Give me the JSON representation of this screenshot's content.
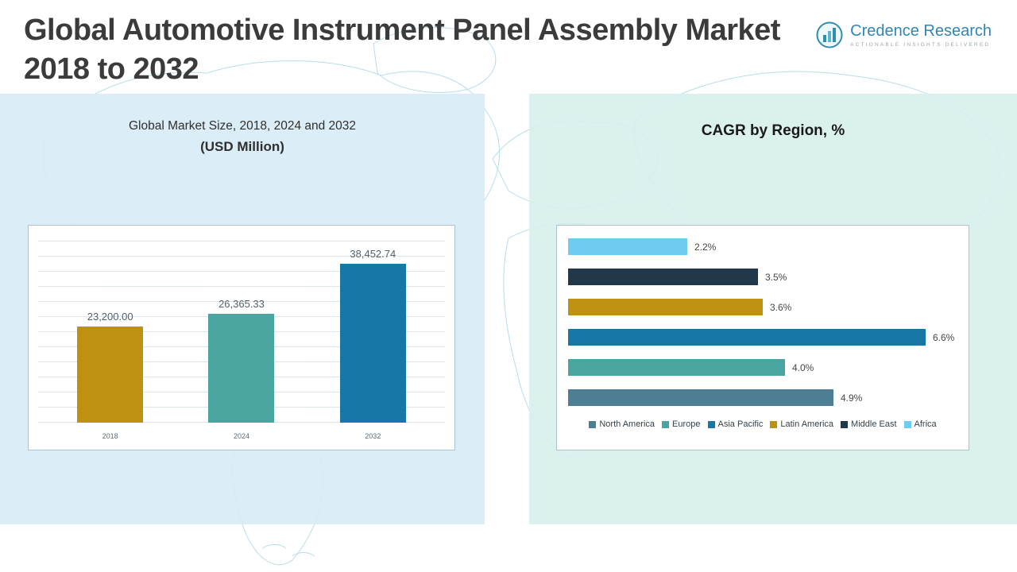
{
  "page": {
    "title": "Global Automotive Instrument Panel Assembly Market 2018 to 2032"
  },
  "logo": {
    "name": "Credence Research",
    "tagline": "Actionable Insights Delivered"
  },
  "charts": {
    "left": {
      "title_line1": "Global Market Size, 2018, 2024 and 2032",
      "title_line2": "(USD Million)"
    },
    "right": {
      "title": "CAGR by Region, %"
    }
  },
  "chart_data": [
    {
      "type": "bar",
      "title": "Global Market Size, 2018, 2024 and 2032 (USD Million)",
      "categories": [
        "2018",
        "2024",
        "2032"
      ],
      "values": [
        23200.0,
        26365.33,
        38452.74
      ],
      "value_labels": [
        "23,200.00",
        "26,365.33",
        "38,452.74"
      ],
      "colors": [
        "#BE9210",
        "#4AA5A0",
        "#1778A8"
      ],
      "ylabel": "",
      "xlabel": "",
      "ylim": [
        0,
        40000
      ],
      "grid": true,
      "legend_position": "none"
    },
    {
      "type": "bar",
      "orientation": "horizontal",
      "title": "CAGR by Region, %",
      "categories": [
        "Africa",
        "Middle East",
        "Latin America",
        "Asia Pacific",
        "Europe",
        "North America"
      ],
      "values": [
        2.2,
        3.5,
        3.6,
        6.6,
        4.0,
        4.9
      ],
      "value_labels": [
        "2.2%",
        "3.5%",
        "3.6%",
        "6.6%",
        "4.0%",
        "4.9%"
      ],
      "colors": [
        "#70CBF0",
        "#21384A",
        "#BE9210",
        "#1778A8",
        "#4AA5A0",
        "#4D7E94"
      ],
      "xlim": [
        0,
        7
      ],
      "grid": false,
      "legend": [
        "North America",
        "Europe",
        "Asia Pacific",
        "Latin America",
        "Middle East",
        "Africa"
      ],
      "legend_colors": [
        "#4D7E94",
        "#4AA5A0",
        "#1778A8",
        "#BE9210",
        "#21384A",
        "#70CBF0"
      ],
      "legend_position": "bottom"
    }
  ]
}
